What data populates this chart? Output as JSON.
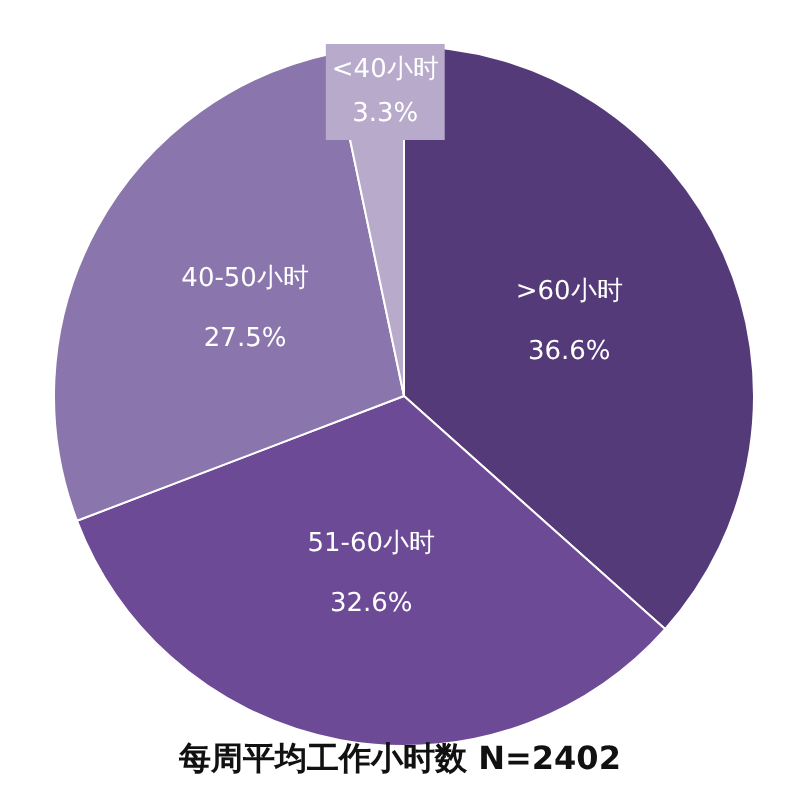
{
  "chart_data": {
    "type": "pie",
    "title": "每周平均工作小时数 N=2402",
    "categories": [
      ">60小时",
      "51-60小时",
      "40-50小时",
      "<40小时"
    ],
    "values": [
      36.6,
      32.6,
      27.5,
      3.3
    ],
    "value_labels": [
      "36.6%",
      "32.6%",
      "27.5%",
      "3.3%"
    ],
    "colors": [
      "#553a7a",
      "#6c4a96",
      "#8a76ad",
      "#b7aacb"
    ],
    "legend": false
  }
}
